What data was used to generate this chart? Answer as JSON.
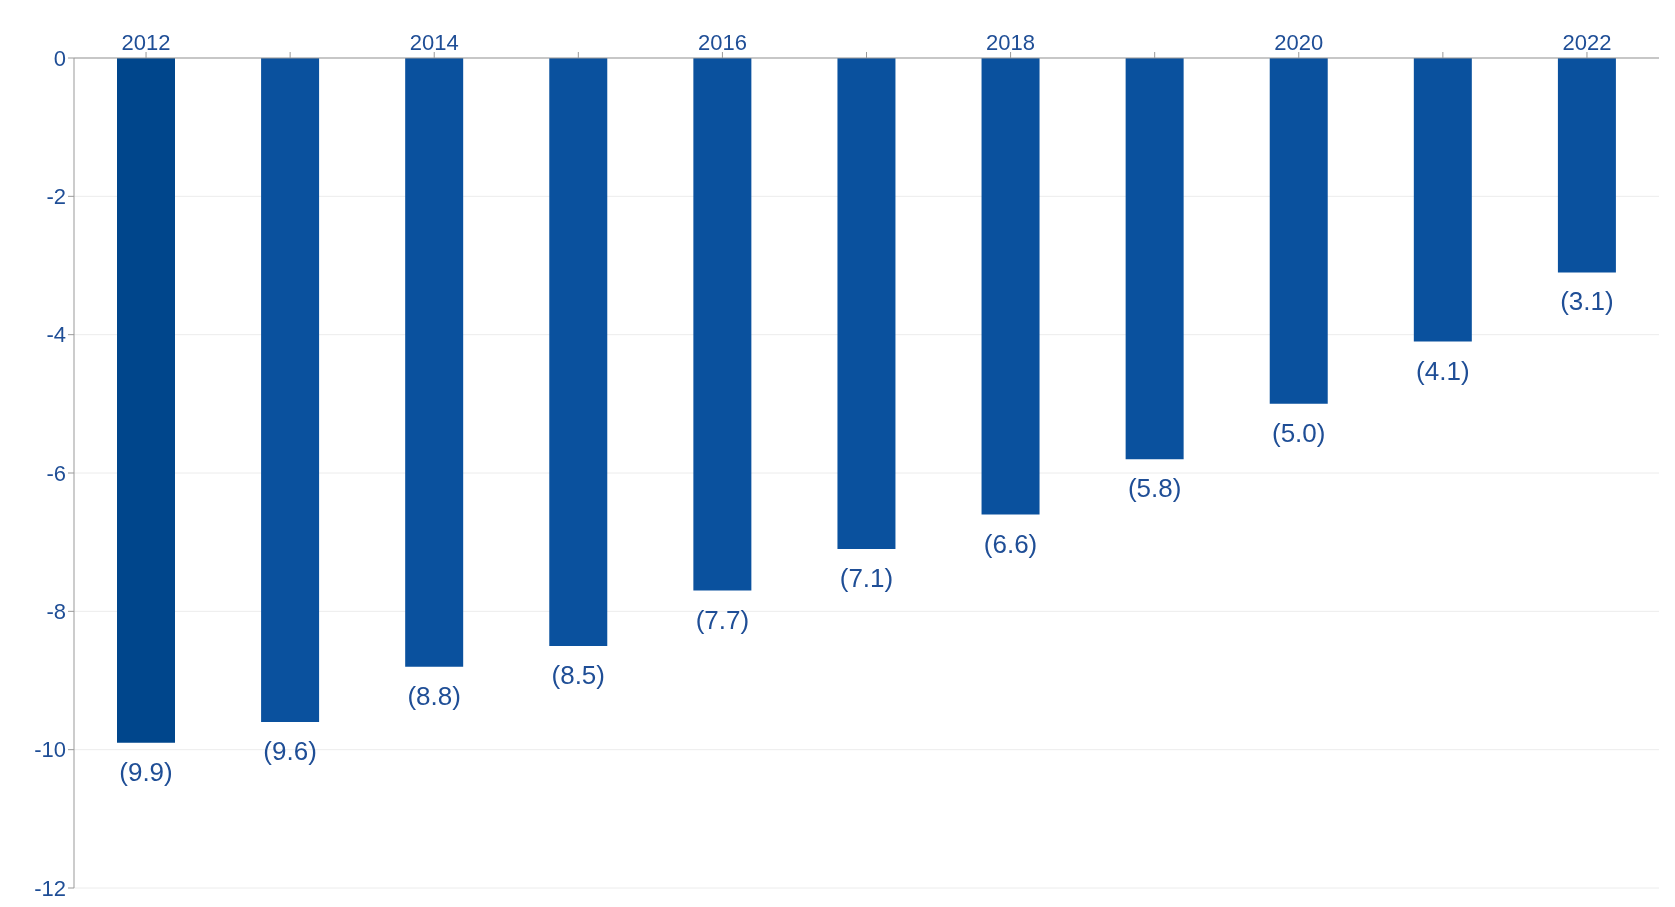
{
  "chart_data": {
    "type": "bar",
    "categories": [
      "2012",
      null,
      "2014",
      null,
      "2016",
      null,
      "2018",
      null,
      "2020",
      null,
      "2022"
    ],
    "values": [
      -9.9,
      -9.6,
      -8.8,
      -8.5,
      -7.7,
      -7.1,
      -6.6,
      -5.8,
      -5.0,
      -4.1,
      -3.1
    ],
    "value_labels": [
      "(9.9)",
      "(9.6)",
      "(8.8)",
      "(8.5)",
      "(7.7)",
      "(7.1)",
      "(6.6)",
      "(5.8)",
      "(5.0)",
      "(4.1)",
      "(3.1)"
    ],
    "colors": [
      "#00468c",
      "#0a519e",
      "#0a519e",
      "#0a519e",
      "#0a519e",
      "#0a519e",
      "#0a519e",
      "#0a519e",
      "#0a519e",
      "#0a519e",
      "#0a519e"
    ],
    "ylim": [
      -12,
      0
    ],
    "yticks": [
      -12,
      -10,
      -8,
      -6,
      -4,
      -2,
      0
    ],
    "grid": "y"
  }
}
